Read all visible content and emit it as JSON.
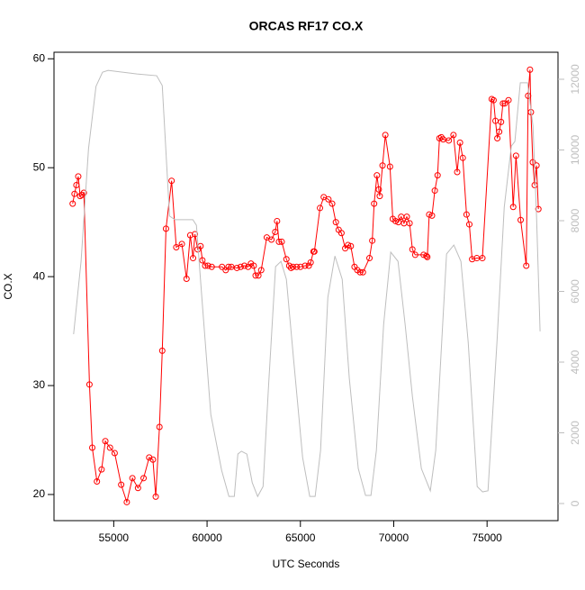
{
  "chart_data": {
    "type": "line",
    "title": "ORCAS RF17 CO.X",
    "xlabel": "UTC Seconds",
    "ylabel": "CO.X",
    "xlim": [
      51800,
      78800
    ],
    "xticks": [
      55000,
      60000,
      65000,
      70000,
      75000
    ],
    "ylim": [
      17.6,
      60.6
    ],
    "yticks": [
      20,
      30,
      40,
      50,
      60
    ],
    "y2lim": [
      -484,
      12764
    ],
    "y2ticks": [
      0,
      2000,
      4000,
      6000,
      8000,
      10000,
      12000
    ],
    "series": [
      {
        "name": "CO.X",
        "color": "#ff0000",
        "markers": true,
        "x": [
          52800,
          52900,
          53000,
          53100,
          53200,
          53300,
          53400,
          53700,
          53850,
          54100,
          54350,
          54550,
          54800,
          55050,
          55400,
          55700,
          56000,
          56300,
          56600,
          56900,
          57100,
          57250,
          57450,
          57600,
          57800,
          58100,
          58350,
          58650,
          58900,
          59100,
          59250,
          59350,
          59500,
          59650,
          59750,
          59900,
          60050,
          60250,
          60800,
          61000,
          61150,
          61300,
          61600,
          61800,
          62000,
          62200,
          62350,
          62500,
          62600,
          62750,
          62900,
          63200,
          63450,
          63650,
          63750,
          63850,
          64000,
          64250,
          64400,
          64500,
          64600,
          64800,
          65000,
          65250,
          65450,
          65550,
          65700,
          65750,
          66050,
          66250,
          66500,
          66700,
          66900,
          67050,
          67200,
          67400,
          67550,
          67700,
          67900,
          68050,
          68200,
          68350,
          68700,
          68850,
          68950,
          69100,
          69200,
          69250,
          69400,
          69550,
          69800,
          69950,
          70100,
          70250,
          70400,
          70550,
          70700,
          70850,
          71000,
          71150,
          71600,
          71750,
          71800,
          71900,
          72050,
          72200,
          72350,
          72450,
          72550,
          72650,
          72950,
          73200,
          73400,
          73550,
          73700,
          73900,
          74050,
          74200,
          74450,
          74750,
          75250,
          75350,
          75450,
          75550,
          75650,
          75750,
          75850,
          75950,
          76150,
          76400,
          76550,
          76800,
          77100,
          77200,
          77300,
          77350,
          77450,
          77550,
          77650,
          77750
        ],
        "values": [
          46.7,
          47.6,
          48.4,
          49.2,
          47.4,
          47.5,
          47.7,
          30.1,
          24.3,
          21.2,
          22.3,
          24.9,
          24.3,
          23.8,
          20.9,
          19.3,
          21.5,
          20.6,
          21.5,
          23.4,
          23.2,
          19.8,
          26.2,
          33.2,
          44.4,
          48.8,
          42.7,
          43.0,
          39.8,
          43.8,
          41.7,
          43.9,
          42.5,
          42.8,
          41.5,
          41.0,
          41.0,
          40.9,
          40.9,
          40.6,
          40.9,
          40.9,
          40.8,
          40.9,
          41.0,
          40.9,
          41.2,
          41.0,
          40.1,
          40.1,
          40.6,
          43.6,
          43.4,
          44.1,
          45.1,
          43.2,
          43.2,
          41.6,
          41.0,
          40.8,
          40.9,
          40.9,
          40.9,
          41.0,
          41.0,
          41.3,
          42.3,
          42.3,
          46.3,
          47.3,
          47.1,
          46.7,
          45.0,
          44.3,
          44.0,
          42.6,
          42.9,
          42.8,
          40.9,
          40.6,
          40.4,
          40.4,
          41.7,
          43.3,
          46.7,
          49.3,
          48.0,
          47.4,
          50.2,
          53.0,
          50.1,
          45.3,
          45.1,
          45.0,
          45.5,
          44.9,
          45.5,
          44.9,
          42.5,
          42.0,
          42.0,
          41.9,
          41.8,
          45.7,
          45.6,
          47.9,
          49.3,
          52.7,
          52.8,
          52.6,
          52.5,
          53.0,
          49.6,
          52.3,
          50.9,
          45.7,
          44.8,
          41.6,
          41.7,
          41.7,
          56.3,
          56.2,
          54.3,
          52.7,
          53.3,
          54.2,
          55.9,
          55.9,
          56.2,
          46.4,
          51.1,
          45.2,
          41.0,
          56.6,
          59.0,
          55.1,
          50.5,
          48.4,
          50.2,
          46.2
        ]
      },
      {
        "color": "#bebebe",
        "axis": "y2",
        "markers": false,
        "x": [
          52850,
          53250,
          53650,
          54050,
          54400,
          54700,
          56250,
          57300,
          57600,
          57990,
          58280,
          59240,
          59430,
          59720,
          60200,
          60780,
          61170,
          61460,
          61650,
          61840,
          62130,
          62420,
          62710,
          63000,
          63290,
          63670,
          63960,
          64250,
          64640,
          65120,
          65500,
          65790,
          66080,
          66470,
          66850,
          67240,
          67620,
          68100,
          68490,
          68780,
          69070,
          69460,
          69840,
          70230,
          70610,
          71000,
          71480,
          71960,
          72250,
          72830,
          73220,
          73600,
          73990,
          74470,
          74760,
          75050,
          75530,
          75920,
          76300,
          76490,
          76780,
          77170,
          77460,
          77650,
          77840
        ],
        "values": [
          4790,
          6850,
          10040,
          11800,
          12200,
          12250,
          12150,
          12100,
          11820,
          8130,
          8030,
          8030,
          7870,
          5830,
          2520,
          940,
          200,
          200,
          1400,
          1480,
          1400,
          590,
          200,
          480,
          3290,
          6700,
          6850,
          6340,
          4050,
          1300,
          200,
          200,
          1500,
          5830,
          7000,
          6340,
          3540,
          990,
          230,
          230,
          1500,
          5070,
          7110,
          6850,
          5070,
          3030,
          990,
          360,
          1500,
          7060,
          7310,
          6850,
          4560,
          480,
          330,
          360,
          4560,
          8380,
          10110,
          10240,
          11900,
          11900,
          10680,
          8130,
          4870
        ]
      }
    ]
  }
}
